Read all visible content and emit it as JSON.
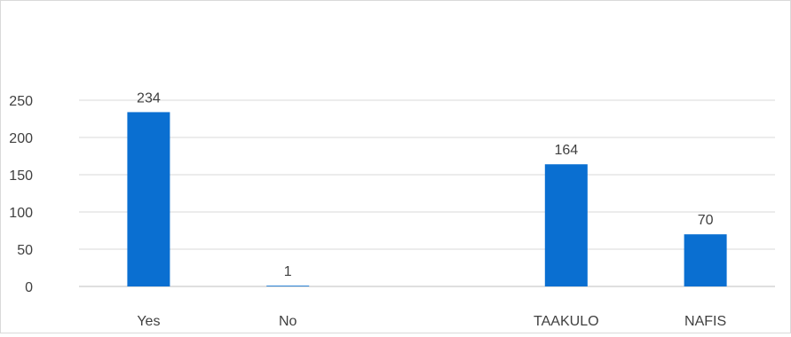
{
  "chart_data": {
    "type": "bar",
    "title": "",
    "xlabel": "",
    "ylabel": "",
    "categories": [
      "Yes",
      "No",
      "",
      "TAAKULO",
      "NAFIS"
    ],
    "values": [
      234,
      1,
      null,
      164,
      70
    ],
    "data_labels": [
      "234",
      "1",
      "",
      "164",
      "70"
    ],
    "ylim": [
      0,
      250
    ],
    "yticks": [
      0,
      50,
      100,
      150,
      200,
      250
    ],
    "grid": true,
    "legend": "none",
    "bar_color": "#0a6fd1",
    "grid_color": "#d9d9d9",
    "axis_color": "#bfbfbf"
  }
}
